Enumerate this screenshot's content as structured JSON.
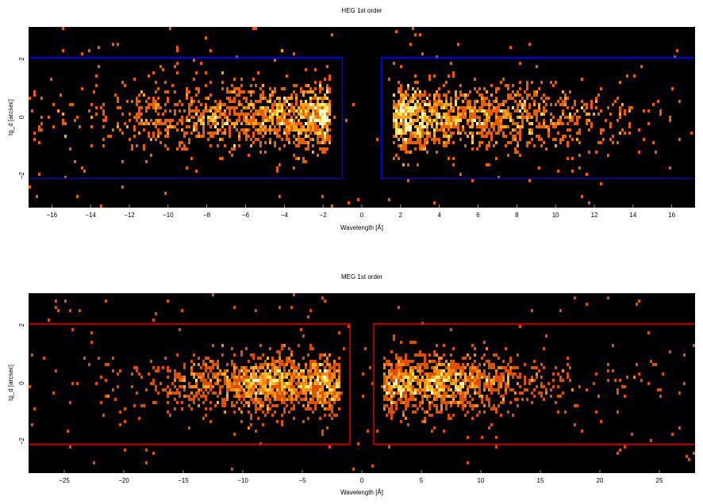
{
  "chart_data": [
    {
      "type": "heatmap",
      "title": "HEG 1st order",
      "xlabel": "Wavelength [Å]",
      "ylabel": "tg_d [arcsec]",
      "xlim": [
        -17.2,
        17.2
      ],
      "ylim": [
        -3.1,
        3.1
      ],
      "xticks": [
        -16,
        -14,
        -12,
        -10,
        -8,
        -6,
        -4,
        -2,
        0,
        2,
        4,
        6,
        8,
        10,
        12,
        14,
        16
      ],
      "xtick_labels": [
        "−16",
        "−14",
        "−12",
        "−10",
        "−8",
        "−6",
        "−4",
        "−2",
        "0",
        "2",
        "4",
        "6",
        "8",
        "10",
        "12",
        "14",
        "16"
      ],
      "yticks": [
        -2,
        0,
        2
      ],
      "ytick_labels": [
        "−2",
        "0",
        "2"
      ],
      "background_color": "#000000",
      "colormap": "heat",
      "extraction_regions": {
        "color": "#0000ff",
        "boxes": [
          {
            "x": [
              -17.2,
              -1.0
            ],
            "y": [
              -2.1,
              2.05
            ]
          },
          {
            "x": [
              1.0,
              17.2
            ],
            "y": [
              -2.1,
              2.05
            ]
          }
        ]
      },
      "emission": {
        "y_center": 0.0,
        "y_sigma": 0.55,
        "density_profile": [
          {
            "x": -16.5,
            "level": 0.02
          },
          {
            "x": -14.0,
            "level": 0.05
          },
          {
            "x": -12.0,
            "level": 0.1
          },
          {
            "x": -10.0,
            "level": 0.18
          },
          {
            "x": -8.0,
            "level": 0.25
          },
          {
            "x": -6.0,
            "level": 0.32
          },
          {
            "x": -4.0,
            "level": 0.45
          },
          {
            "x": -2.8,
            "level": 0.75
          },
          {
            "x": -2.0,
            "level": 1.0
          },
          {
            "x": -1.6,
            "level": 0.5
          },
          {
            "x": 1.6,
            "level": 0.5
          },
          {
            "x": 2.0,
            "level": 1.0
          },
          {
            "x": 3.0,
            "level": 0.7
          },
          {
            "x": 4.0,
            "level": 0.4
          },
          {
            "x": 6.0,
            "level": 0.35
          },
          {
            "x": 8.0,
            "level": 0.3
          },
          {
            "x": 10.0,
            "level": 0.18
          },
          {
            "x": 12.0,
            "level": 0.08
          },
          {
            "x": 14.0,
            "level": 0.04
          },
          {
            "x": 16.5,
            "level": 0.01
          }
        ],
        "gap": [
          -1.6,
          1.6
        ]
      }
    },
    {
      "type": "heatmap",
      "title": "MEG 1st order",
      "xlabel": "Wavelength [Å]",
      "ylabel": "tg_d [arcsec]",
      "xlim": [
        -28,
        28
      ],
      "ylim": [
        -3.1,
        3.1
      ],
      "xticks": [
        -25,
        -20,
        -15,
        -10,
        -5,
        0,
        5,
        10,
        15,
        20,
        25
      ],
      "xtick_labels": [
        "−25",
        "−20",
        "−15",
        "−10",
        "−5",
        "0",
        "5",
        "10",
        "15",
        "20",
        "25"
      ],
      "yticks": [
        -2,
        0,
        2
      ],
      "ytick_labels": [
        "−2",
        "0",
        "2"
      ],
      "background_color": "#000000",
      "colormap": "heat",
      "extraction_regions": {
        "color": "#dd0000",
        "boxes": [
          {
            "x": [
              -28,
              -1.0
            ],
            "y": [
              -2.1,
              2.05
            ]
          },
          {
            "x": [
              1.0,
              28
            ],
            "y": [
              -2.1,
              2.05
            ]
          }
        ]
      },
      "emission": {
        "y_center": 0.0,
        "y_sigma": 0.5,
        "density_profile": [
          {
            "x": -27.0,
            "level": 0.01
          },
          {
            "x": -22.0,
            "level": 0.02
          },
          {
            "x": -18.0,
            "level": 0.05
          },
          {
            "x": -15.0,
            "level": 0.15
          },
          {
            "x": -12.0,
            "level": 0.35
          },
          {
            "x": -10.0,
            "level": 0.55
          },
          {
            "x": -8.5,
            "level": 0.85
          },
          {
            "x": -6.5,
            "level": 0.7
          },
          {
            "x": -5.0,
            "level": 0.6
          },
          {
            "x": -3.0,
            "level": 0.95
          },
          {
            "x": -2.0,
            "level": 0.6
          },
          {
            "x": 2.0,
            "level": 0.6
          },
          {
            "x": 3.0,
            "level": 0.95
          },
          {
            "x": 5.0,
            "level": 0.6
          },
          {
            "x": 6.5,
            "level": 0.9
          },
          {
            "x": 8.5,
            "level": 0.6
          },
          {
            "x": 10.0,
            "level": 0.4
          },
          {
            "x": 12.0,
            "level": 0.25
          },
          {
            "x": 14.0,
            "level": 0.12
          },
          {
            "x": 18.0,
            "level": 0.04
          },
          {
            "x": 22.0,
            "level": 0.02
          },
          {
            "x": 27.0,
            "level": 0.01
          }
        ],
        "gap": [
          -1.8,
          1.8
        ]
      }
    }
  ]
}
